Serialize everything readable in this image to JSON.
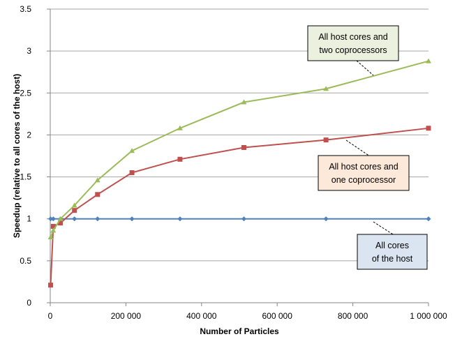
{
  "chart_data": {
    "type": "line",
    "xlabel": "Number of Particles",
    "ylabel": "Speedup (relative to all cores of the host)",
    "xlim": [
      0,
      1000000
    ],
    "ylim": [
      0,
      3.5
    ],
    "xticks": [
      0,
      200000,
      400000,
      600000,
      800000,
      1000000
    ],
    "xtick_labels": [
      "0",
      "200 000",
      "400 000",
      "600 000",
      "800 000",
      "1 000 000"
    ],
    "yticks": [
      0,
      0.5,
      1,
      1.5,
      2,
      2.5,
      3,
      3.5
    ],
    "ytick_labels": [
      "0",
      "0.5",
      "1",
      "1.5",
      "2",
      "2.5",
      "3",
      "3.5"
    ],
    "grid": "horizontal",
    "series": [
      {
        "name": "All cores of the host",
        "label_lines": [
          "All cores",
          "of the host"
        ],
        "color": "#4f81bd",
        "fill": "#dbe5f1",
        "marker": "diamond",
        "x": [
          1000,
          8000,
          27000,
          64000,
          125000,
          216000,
          343000,
          512000,
          729000,
          1000000
        ],
        "y": [
          1,
          1,
          1,
          1,
          1,
          1,
          1,
          1,
          1,
          1
        ]
      },
      {
        "name": "All host cores and one coprocessor",
        "label_lines": [
          "All host cores and",
          "one coprocessor"
        ],
        "color": "#c0504d",
        "fill": "#fde9d9",
        "marker": "square",
        "x": [
          1000,
          8000,
          27000,
          64000,
          125000,
          216000,
          343000,
          512000,
          729000,
          1000000
        ],
        "y": [
          0.21,
          0.91,
          0.95,
          1.1,
          1.29,
          1.55,
          1.71,
          1.85,
          1.94,
          2.08
        ]
      },
      {
        "name": "All host cores and two coprocessors",
        "label_lines": [
          "All host cores and",
          "two coprocessors"
        ],
        "color": "#9bbb59",
        "fill": "#ebf1de",
        "marker": "triangle",
        "x": [
          1000,
          8000,
          27000,
          64000,
          125000,
          216000,
          343000,
          512000,
          729000,
          1000000
        ],
        "y": [
          0.78,
          0.86,
          1.0,
          1.16,
          1.46,
          1.81,
          2.08,
          2.39,
          2.55,
          2.88
        ]
      }
    ]
  }
}
